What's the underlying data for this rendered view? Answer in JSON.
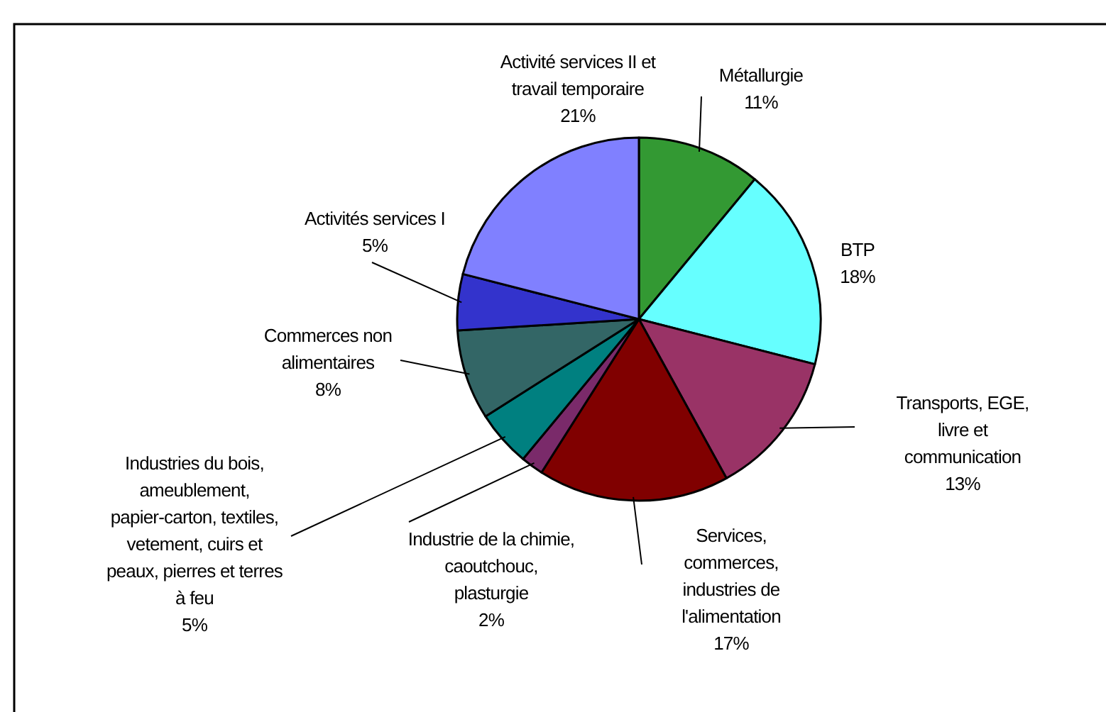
{
  "chart_data": {
    "type": "pie",
    "categories": [
      "Métallurgie",
      "BTP",
      "Transports, EGE, livre et communication",
      "Services, commerces, industries de l'alimentation",
      "Industrie de la chimie, caoutchouc, plasturgie",
      "Industries du bois, ameublement, papier-carton, textiles, vetement, cuirs et peaux, pierres et terres à feu",
      "Commerces non alimentaires",
      "Activités services I",
      "Activité services II et travail temporaire"
    ],
    "values": [
      11,
      18,
      13,
      17,
      2,
      5,
      8,
      5,
      21
    ],
    "colors": [
      "#339933",
      "#66ffff",
      "#993366",
      "#800000",
      "#7a2a6a",
      "#008080",
      "#336666",
      "#3333cc",
      "#8080ff"
    ],
    "value_labels": [
      "11%",
      "18%",
      "13%",
      "17%",
      "2%",
      "5%",
      "8%",
      "5%",
      "21%"
    ]
  }
}
